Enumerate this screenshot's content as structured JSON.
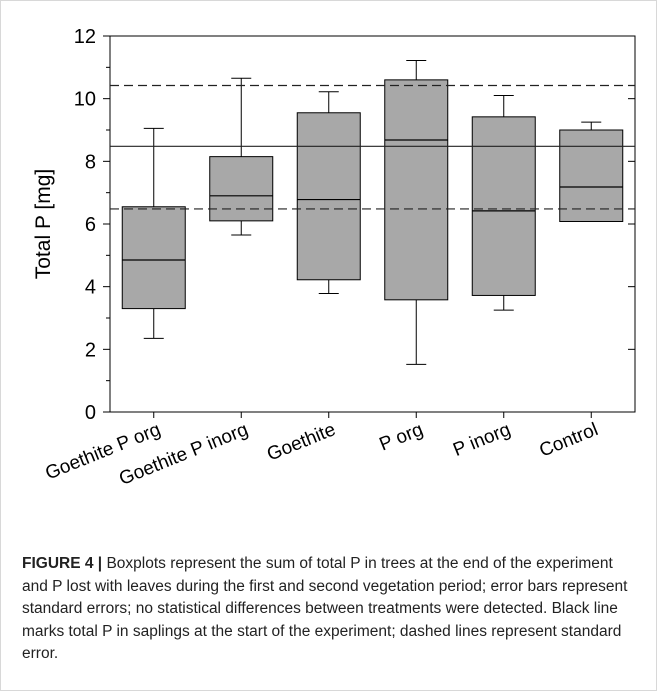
{
  "figure": {
    "label": "FIGURE 4 |",
    "caption": " Boxplots represent the sum of total P in trees at the end of the experiment and P lost with leaves during the first and second vegetation period; error bars represent standard errors; no statistical differences between treatments were detected. Black line marks total P in saplings at the start of the experiment; dashed lines represent standard error."
  },
  "chart_data": {
    "type": "box",
    "ylabel": "Total P [mg]",
    "xlabel": "",
    "ylim": [
      0,
      12
    ],
    "yticks": [
      0,
      2,
      4,
      6,
      8,
      10,
      12
    ],
    "grid": false,
    "categories": [
      "Goethite P org",
      "Goethite P inorg",
      "Goethite",
      "P org",
      "P inorg",
      "Control"
    ],
    "boxes": [
      {
        "whisker_low": 2.35,
        "q1": 3.3,
        "median": 4.85,
        "q3": 6.55,
        "whisker_high": 9.05
      },
      {
        "whisker_low": 5.65,
        "q1": 6.1,
        "median": 6.9,
        "q3": 8.15,
        "whisker_high": 10.65
      },
      {
        "whisker_low": 3.78,
        "q1": 4.22,
        "median": 6.78,
        "q3": 9.55,
        "whisker_high": 10.22
      },
      {
        "whisker_low": 1.52,
        "q1": 3.58,
        "median": 8.68,
        "q3": 10.6,
        "whisker_high": 11.22
      },
      {
        "whisker_low": 3.25,
        "q1": 3.72,
        "median": 6.42,
        "q3": 9.42,
        "whisker_high": 10.1
      },
      {
        "whisker_low": 6.08,
        "q1": 6.08,
        "median": 7.18,
        "q3": 9.0,
        "whisker_high": 9.25
      }
    ],
    "reference_lines": [
      {
        "value": 8.48,
        "style": "solid"
      },
      {
        "value": 10.42,
        "style": "dashed"
      },
      {
        "value": 6.48,
        "style": "dashed"
      }
    ],
    "colors": {
      "box_fill": "#a8a8a8",
      "stroke": "#000000",
      "frame": "#d8d8d8"
    }
  }
}
